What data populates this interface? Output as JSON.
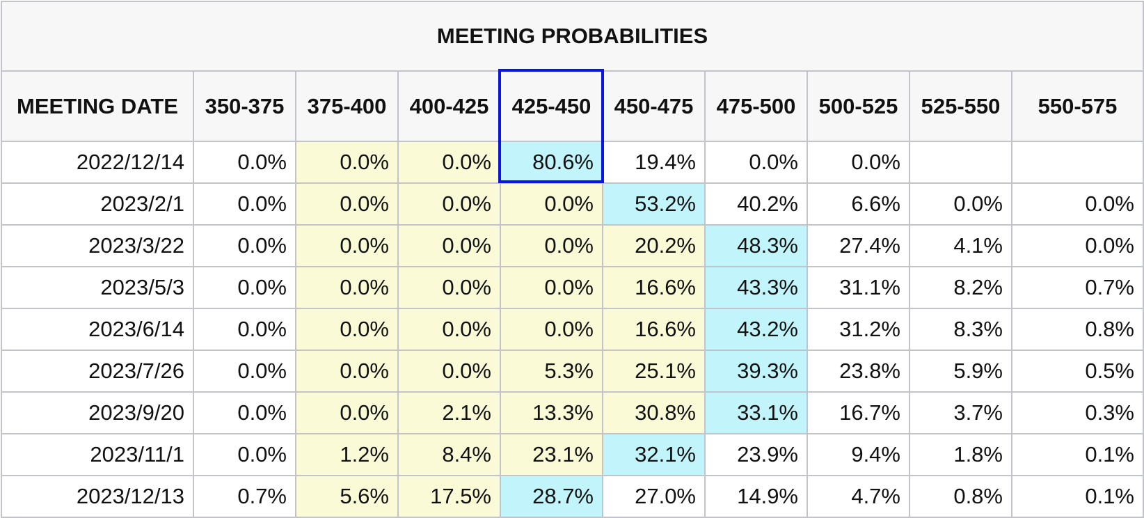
{
  "table": {
    "title": "MEETING PROBABILITIES",
    "columns": [
      "MEETING DATE",
      "350-375",
      "375-400",
      "400-425",
      "425-450",
      "450-475",
      "475-500",
      "500-525",
      "525-550",
      "550-575"
    ],
    "rows": [
      {
        "date": "2022/12/14",
        "cells": [
          {
            "v": "0.0%",
            "c": "w"
          },
          {
            "v": "0.0%",
            "c": "y"
          },
          {
            "v": "0.0%",
            "c": "y"
          },
          {
            "v": "80.6%",
            "c": "c"
          },
          {
            "v": "19.4%",
            "c": "w"
          },
          {
            "v": "0.0%",
            "c": "w"
          },
          {
            "v": "0.0%",
            "c": "w"
          },
          {
            "v": "",
            "c": "w"
          },
          {
            "v": "",
            "c": "w"
          }
        ]
      },
      {
        "date": "2023/2/1",
        "cells": [
          {
            "v": "0.0%",
            "c": "w"
          },
          {
            "v": "0.0%",
            "c": "y"
          },
          {
            "v": "0.0%",
            "c": "y"
          },
          {
            "v": "0.0%",
            "c": "y"
          },
          {
            "v": "53.2%",
            "c": "c"
          },
          {
            "v": "40.2%",
            "c": "w"
          },
          {
            "v": "6.6%",
            "c": "w"
          },
          {
            "v": "0.0%",
            "c": "w"
          },
          {
            "v": "0.0%",
            "c": "w"
          }
        ]
      },
      {
        "date": "2023/3/22",
        "cells": [
          {
            "v": "0.0%",
            "c": "w"
          },
          {
            "v": "0.0%",
            "c": "y"
          },
          {
            "v": "0.0%",
            "c": "y"
          },
          {
            "v": "0.0%",
            "c": "y"
          },
          {
            "v": "20.2%",
            "c": "y"
          },
          {
            "v": "48.3%",
            "c": "c"
          },
          {
            "v": "27.4%",
            "c": "w"
          },
          {
            "v": "4.1%",
            "c": "w"
          },
          {
            "v": "0.0%",
            "c": "w"
          }
        ]
      },
      {
        "date": "2023/5/3",
        "cells": [
          {
            "v": "0.0%",
            "c": "w"
          },
          {
            "v": "0.0%",
            "c": "y"
          },
          {
            "v": "0.0%",
            "c": "y"
          },
          {
            "v": "0.0%",
            "c": "y"
          },
          {
            "v": "16.6%",
            "c": "y"
          },
          {
            "v": "43.3%",
            "c": "c"
          },
          {
            "v": "31.1%",
            "c": "w"
          },
          {
            "v": "8.2%",
            "c": "w"
          },
          {
            "v": "0.7%",
            "c": "w"
          }
        ]
      },
      {
        "date": "2023/6/14",
        "cells": [
          {
            "v": "0.0%",
            "c": "w"
          },
          {
            "v": "0.0%",
            "c": "y"
          },
          {
            "v": "0.0%",
            "c": "y"
          },
          {
            "v": "0.0%",
            "c": "y"
          },
          {
            "v": "16.6%",
            "c": "y"
          },
          {
            "v": "43.2%",
            "c": "c"
          },
          {
            "v": "31.2%",
            "c": "w"
          },
          {
            "v": "8.3%",
            "c": "w"
          },
          {
            "v": "0.8%",
            "c": "w"
          }
        ]
      },
      {
        "date": "2023/7/26",
        "cells": [
          {
            "v": "0.0%",
            "c": "w"
          },
          {
            "v": "0.0%",
            "c": "y"
          },
          {
            "v": "0.0%",
            "c": "y"
          },
          {
            "v": "5.3%",
            "c": "y"
          },
          {
            "v": "25.1%",
            "c": "y"
          },
          {
            "v": "39.3%",
            "c": "c"
          },
          {
            "v": "23.8%",
            "c": "w"
          },
          {
            "v": "5.9%",
            "c": "w"
          },
          {
            "v": "0.5%",
            "c": "w"
          }
        ]
      },
      {
        "date": "2023/9/20",
        "cells": [
          {
            "v": "0.0%",
            "c": "w"
          },
          {
            "v": "0.0%",
            "c": "y"
          },
          {
            "v": "2.1%",
            "c": "y"
          },
          {
            "v": "13.3%",
            "c": "y"
          },
          {
            "v": "30.8%",
            "c": "y"
          },
          {
            "v": "33.1%",
            "c": "c"
          },
          {
            "v": "16.7%",
            "c": "w"
          },
          {
            "v": "3.7%",
            "c": "w"
          },
          {
            "v": "0.3%",
            "c": "w"
          }
        ]
      },
      {
        "date": "2023/11/1",
        "cells": [
          {
            "v": "0.0%",
            "c": "w"
          },
          {
            "v": "1.2%",
            "c": "y"
          },
          {
            "v": "8.4%",
            "c": "y"
          },
          {
            "v": "23.1%",
            "c": "y"
          },
          {
            "v": "32.1%",
            "c": "c"
          },
          {
            "v": "23.9%",
            "c": "w"
          },
          {
            "v": "9.4%",
            "c": "w"
          },
          {
            "v": "1.8%",
            "c": "w"
          },
          {
            "v": "0.1%",
            "c": "w"
          }
        ]
      },
      {
        "date": "2023/12/13",
        "cells": [
          {
            "v": "0.7%",
            "c": "w"
          },
          {
            "v": "5.6%",
            "c": "y"
          },
          {
            "v": "17.5%",
            "c": "y"
          },
          {
            "v": "28.7%",
            "c": "c"
          },
          {
            "v": "27.0%",
            "c": "w"
          },
          {
            "v": "14.9%",
            "c": "w"
          },
          {
            "v": "4.7%",
            "c": "w"
          },
          {
            "v": "0.8%",
            "c": "w"
          },
          {
            "v": "0.1%",
            "c": "w"
          }
        ]
      }
    ]
  },
  "colors": {
    "header_bg": "#f7f7f8",
    "yellow_cell": "#fafad6",
    "cyan_cell": "#c2f5fb",
    "grid_border": "#c3c3cc",
    "highlight_border": "#0a14e6"
  },
  "highlight": {
    "column": "425-450",
    "row": "2022/12/14"
  }
}
